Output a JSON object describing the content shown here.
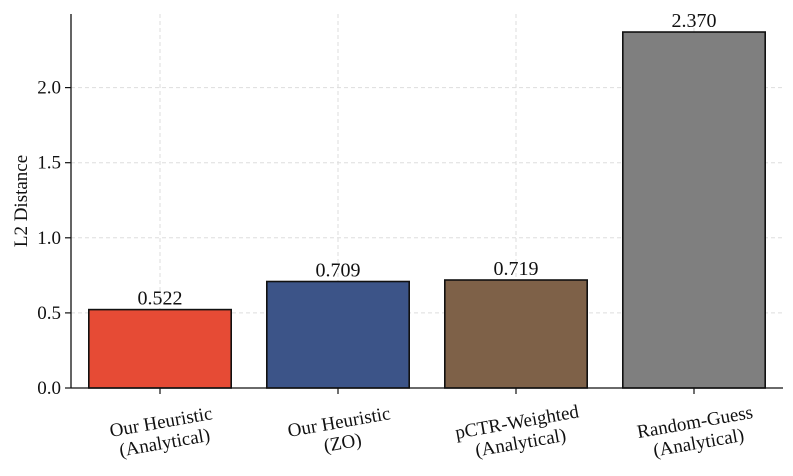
{
  "chart_data": {
    "type": "bar",
    "title": "",
    "xlabel": "",
    "ylabel": "L2 Distance",
    "ylim": [
      0,
      2.49
    ],
    "yticks": [
      0.0,
      0.5,
      1.0,
      1.5,
      2.0
    ],
    "ytick_labels": [
      "0.0",
      "0.5",
      "1.0",
      "1.5",
      "2.0"
    ],
    "grid": true,
    "categories": [
      [
        "Our Heuristic",
        "(Analytical)"
      ],
      [
        "Our Heuristic",
        "(ZO)"
      ],
      [
        "pCTR-Weighted",
        "(Analytical)"
      ],
      [
        "Random-Guess",
        "(Analytical)"
      ]
    ],
    "values": [
      0.522,
      0.709,
      0.719,
      2.37
    ],
    "value_labels": [
      "0.522",
      "0.709",
      "0.719",
      "2.370"
    ],
    "colors": [
      "#e64b35",
      "#3c5488",
      "#7e6148",
      "#7f7f7f"
    ],
    "edge_color": "#111111",
    "grid_color": "#dddddd"
  }
}
